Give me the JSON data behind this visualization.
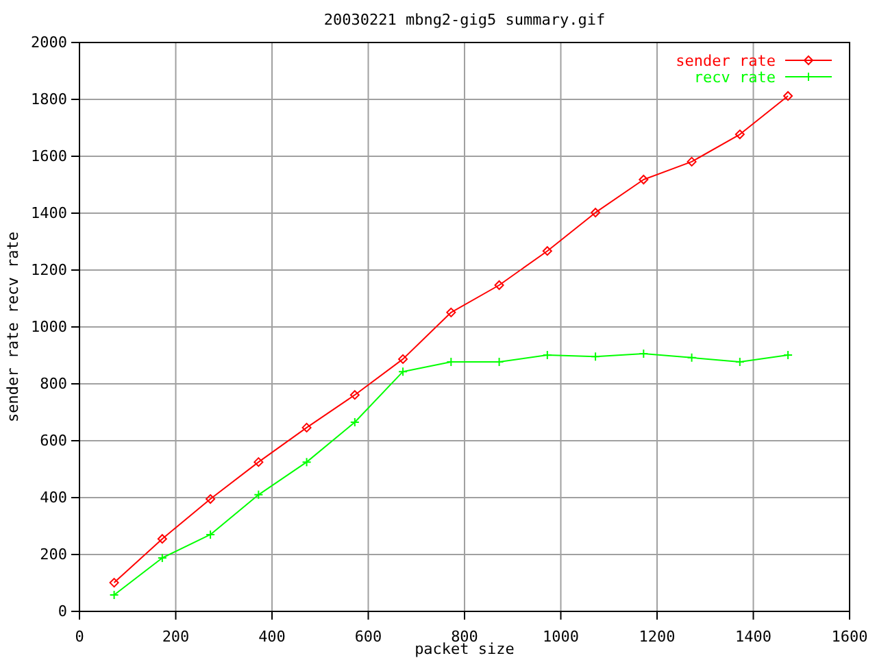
{
  "chart_data": {
    "type": "line",
    "title": "20030221 mbng2-gig5 summary.gif",
    "xlabel": "packet size",
    "ylabel": "sender rate recv rate",
    "x": [
      72,
      172,
      272,
      372,
      472,
      572,
      672,
      772,
      872,
      972,
      1072,
      1172,
      1272,
      1372,
      1472
    ],
    "xlim": [
      0,
      1600
    ],
    "xticks": [
      0,
      200,
      400,
      600,
      800,
      1000,
      1200,
      1400,
      1600
    ],
    "ylim": [
      0,
      2000
    ],
    "yticks": [
      0,
      200,
      400,
      600,
      800,
      1000,
      1200,
      1400,
      1600,
      1800,
      2000
    ],
    "grid": true,
    "legend": "top right",
    "series": [
      {
        "name": "sender rate",
        "color": "#ff0000",
        "marker": "diamond",
        "values": [
          101,
          255,
          395,
          525,
          646,
          761,
          887,
          1051,
          1147,
          1267,
          1402,
          1518,
          1581,
          1677,
          1812
        ]
      },
      {
        "name": "recv rate",
        "color": "#00ff00",
        "marker": "cross",
        "values": [
          58,
          188,
          270,
          410,
          525,
          665,
          843,
          877,
          877,
          901,
          896,
          906,
          892,
          877,
          901
        ]
      }
    ]
  }
}
